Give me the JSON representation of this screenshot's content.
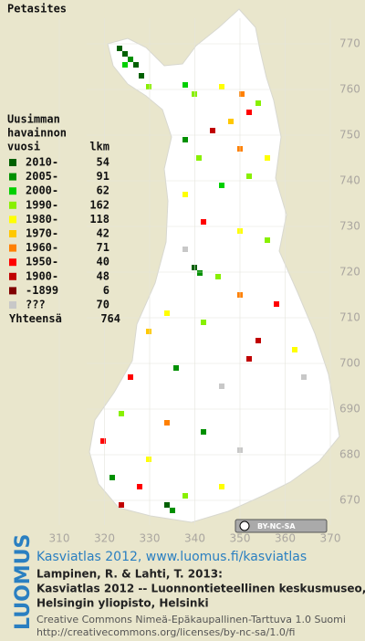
{
  "title": "Petasites",
  "legend": {
    "heading": [
      "Uusimman",
      "havainnon"
    ],
    "col_year": "vuosi",
    "col_count": "lkm",
    "rows": [
      {
        "label": "2010-",
        "count": 54,
        "color": "#006000"
      },
      {
        "label": "2005-",
        "count": 91,
        "color": "#009000"
      },
      {
        "label": "2000-",
        "count": 62,
        "color": "#00d000"
      },
      {
        "label": "1990-",
        "count": 162,
        "color": "#88f000"
      },
      {
        "label": "1980-",
        "count": 118,
        "color": "#ffff00"
      },
      {
        "label": "1970-",
        "count": 42,
        "color": "#ffc800"
      },
      {
        "label": "1960-",
        "count": 71,
        "color": "#ff8000"
      },
      {
        "label": "1950-",
        "count": 40,
        "color": "#ff0000"
      },
      {
        "label": "1900-",
        "count": 48,
        "color": "#c00000"
      },
      {
        "label": "-1899",
        "count": 6,
        "color": "#800000"
      },
      {
        "label": "???",
        "count": 70,
        "color": "#c8c8c8"
      }
    ],
    "total_label": "Yhteensä",
    "total": 764
  },
  "grid": {
    "y_labels": [
      770,
      760,
      750,
      740,
      730,
      720,
      710,
      700,
      690,
      680,
      670
    ],
    "x_labels": [
      310,
      320,
      330,
      340,
      350,
      360,
      370
    ]
  },
  "badge": "BY-NC-SA",
  "footer": {
    "logo": "LUOMUS",
    "atlas": "Kasviatlas 2012, www.luomus.fi/kasviatlas",
    "citation": [
      "Lampinen, R. & Lahti, T. 2013:",
      "Kasviatlas 2012 -- Luonnontieteellinen keskusmuseo,",
      "Helsingin yliopisto, Helsinki"
    ],
    "license": [
      "Creative Commons Nimeä-Epäkaupallinen-Tarttuva 1.0 Suomi",
      "http://creativecommons.org/licenses/by-nc-sa/1.0/fi"
    ]
  }
}
